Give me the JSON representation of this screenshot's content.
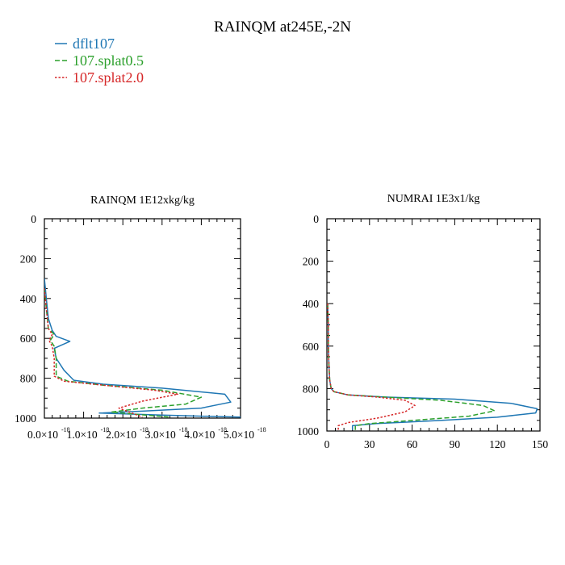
{
  "page_title": "RAINQM at245E,-2N",
  "legend": [
    {
      "label": "dflt107",
      "color": "#1f77b4",
      "dash": "solid"
    },
    {
      "label": "107.splat0.5",
      "color": "#2ca02c",
      "dash": "dashed"
    },
    {
      "label": "107.splat2.0",
      "color": "#d62728",
      "dash": "dotted"
    }
  ],
  "chart_data": [
    {
      "type": "line",
      "title": "RAINQM  1E12xkg/kg",
      "xlim": [
        0,
        5e-18
      ],
      "ylim": [
        1000,
        0
      ],
      "y_inverted": true,
      "x_ticks": [
        0,
        1e-18,
        2e-18,
        3e-18,
        4e-18,
        5e-18
      ],
      "x_tick_labels": [
        {
          "mantissa": "0.0×10",
          "exp": "-18"
        },
        {
          "mantissa": "1.0×10",
          "exp": "-18"
        },
        {
          "mantissa": "2.0×10",
          "exp": "-18"
        },
        {
          "mantissa": "3.0×10",
          "exp": "-18"
        },
        {
          "mantissa": "4.0×10",
          "exp": "-18"
        },
        {
          "mantissa": "5.0×10",
          "exp": "-18"
        }
      ],
      "y_ticks": [
        0,
        200,
        400,
        600,
        800,
        1000
      ],
      "y_tick_labels": [
        "0",
        "200",
        "400",
        "600",
        "800",
        "1000"
      ],
      "series": [
        {
          "name": "dflt107",
          "x": [
            0,
            5e-20,
            1e-19,
            2e-19,
            3e-19,
            6.5e-19,
            2.5e-19,
            3e-19,
            5e-19,
            7.5e-19,
            1.5e-18,
            3e-18,
            4.6e-18,
            4.75e-18,
            4e-18,
            2.5e-18,
            1.4e-18,
            3e-18,
            5e-18
          ],
          "y": [
            300,
            400,
            500,
            560,
            590,
            615,
            650,
            700,
            760,
            810,
            830,
            850,
            880,
            920,
            950,
            965,
            975,
            985,
            995
          ]
        },
        {
          "name": "107.splat0.5",
          "x": [
            0,
            5e-20,
            1e-19,
            2.5e-19,
            1.5e-19,
            2.5e-19,
            3e-19,
            3e-19,
            6e-19,
            1.5e-18,
            3e-18,
            4e-18,
            3.6e-18,
            2.5e-18,
            1.7e-18,
            3.2e-18
          ],
          "y": [
            350,
            450,
            550,
            580,
            610,
            640,
            700,
            790,
            815,
            835,
            860,
            895,
            930,
            950,
            970,
            995
          ]
        },
        {
          "name": "107.splat2.0",
          "x": [
            0,
            5e-20,
            1e-19,
            2e-19,
            1.2e-19,
            2e-19,
            2.5e-19,
            2.5e-19,
            5e-19,
            1.5e-18,
            2.8e-18,
            3.4e-18,
            2.5e-18,
            1.9e-18,
            2.5e-18
          ],
          "y": [
            350,
            450,
            550,
            580,
            610,
            640,
            700,
            790,
            815,
            835,
            860,
            880,
            915,
            950,
            995
          ]
        }
      ]
    },
    {
      "type": "line",
      "title": "NUMRAI  1E3x1/kg",
      "xlim": [
        0,
        150
      ],
      "ylim": [
        1000,
        0
      ],
      "y_inverted": true,
      "x_ticks": [
        0,
        30,
        60,
        90,
        120,
        150
      ],
      "x_tick_labels": [
        "0",
        "30",
        "60",
        "90",
        "120",
        "150"
      ],
      "y_ticks": [
        0,
        200,
        400,
        600,
        800,
        1000
      ],
      "y_tick_labels": [
        "0",
        "200",
        "400",
        "600",
        "800",
        "1000"
      ],
      "series": [
        {
          "name": "dflt107",
          "x": [
            0.5,
            1,
            1,
            1.5,
            2,
            3,
            5,
            15,
            40,
            90,
            130,
            148,
            147,
            120,
            80,
            35,
            18,
            18
          ],
          "y": [
            400,
            500,
            600,
            700,
            760,
            800,
            815,
            830,
            840,
            850,
            870,
            895,
            915,
            935,
            950,
            965,
            975,
            995
          ]
        },
        {
          "name": "107.splat0.5",
          "x": [
            0.5,
            1,
            1,
            1.5,
            2,
            3,
            5,
            15,
            40,
            80,
            110,
            118,
            100,
            60,
            30,
            20,
            20
          ],
          "y": [
            400,
            500,
            600,
            700,
            760,
            800,
            815,
            830,
            840,
            855,
            880,
            905,
            930,
            950,
            965,
            975,
            995
          ]
        },
        {
          "name": "107.splat2.0",
          "x": [
            0.5,
            1,
            1,
            1.5,
            2,
            3,
            5,
            15,
            35,
            55,
            62,
            55,
            35,
            15,
            8,
            8
          ],
          "y": [
            400,
            500,
            600,
            700,
            760,
            800,
            815,
            830,
            840,
            855,
            880,
            910,
            940,
            960,
            975,
            995
          ]
        }
      ]
    }
  ]
}
